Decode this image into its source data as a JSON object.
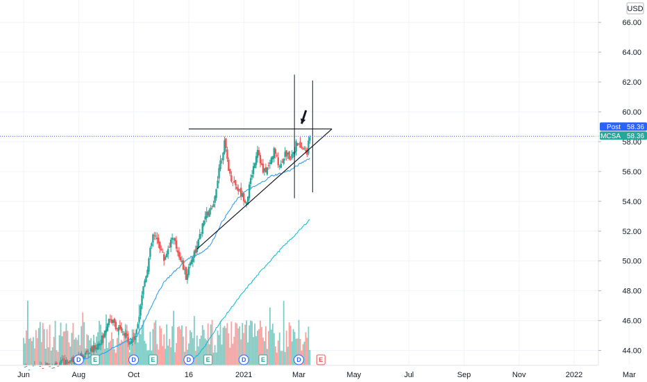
{
  "chart_data": {
    "type": "candlestick",
    "currency": "USD",
    "x_axis_labels": [
      "Jun",
      "Aug",
      "Oct",
      "16",
      "2021",
      "Mar",
      "May",
      "Jul",
      "Sep",
      "Nov",
      "2022",
      "Mar"
    ],
    "y_axis_labels": [
      "66.00",
      "64.00",
      "62.00",
      "60.00",
      "58.00",
      "56.00",
      "54.00",
      "52.00",
      "50.00",
      "48.00",
      "46.00",
      "44.00"
    ],
    "ylim": [
      43.0,
      67.5
    ],
    "price_tags": [
      {
        "label": "Post",
        "value": "58.36",
        "color": "#2962ff"
      },
      {
        "label": "CMCSA",
        "value": "58.36",
        "color": "#26a69a"
      }
    ],
    "last_price": 58.36,
    "ma_fast_anchors": [
      [
        1.0,
        43.4
      ],
      [
        1.3,
        43.6
      ],
      [
        1.5,
        43.9
      ],
      [
        1.7,
        44.3
      ],
      [
        1.9,
        44.7
      ],
      [
        2.05,
        44.9
      ],
      [
        2.15,
        45.6
      ],
      [
        2.35,
        47.2
      ],
      [
        2.55,
        48.6
      ],
      [
        2.8,
        49.5
      ],
      [
        3.0,
        50.2
      ],
      [
        3.25,
        50.6
      ],
      [
        3.4,
        51.1
      ],
      [
        3.6,
        52.6
      ],
      [
        3.85,
        54.0
      ],
      [
        4.0,
        54.6
      ],
      [
        4.3,
        55.2
      ],
      [
        4.5,
        55.7
      ],
      [
        4.7,
        55.9
      ],
      [
        4.85,
        56.1
      ],
      [
        5.1,
        56.7
      ],
      [
        5.2,
        56.9
      ]
    ],
    "ma_slow_anchors": [
      [
        3.0,
        43.0
      ],
      [
        3.3,
        44.3
      ],
      [
        3.5,
        45.5
      ],
      [
        3.8,
        47.0
      ],
      [
        4.1,
        48.4
      ],
      [
        4.4,
        49.7
      ],
      [
        4.7,
        50.9
      ],
      [
        5.0,
        52.0
      ],
      [
        5.2,
        52.8
      ]
    ],
    "candle_anchors": [
      [
        0.0,
        42.7
      ],
      [
        0.5,
        42.9
      ],
      [
        1.0,
        43.5
      ],
      [
        1.25,
        44.0
      ],
      [
        1.45,
        44.9
      ],
      [
        1.55,
        46.2
      ],
      [
        1.75,
        45.3
      ],
      [
        1.95,
        44.6
      ],
      [
        2.05,
        45.2
      ],
      [
        2.15,
        47.8
      ],
      [
        2.25,
        49.6
      ],
      [
        2.35,
        51.7
      ],
      [
        2.45,
        51.3
      ],
      [
        2.55,
        50.1
      ],
      [
        2.7,
        51.6
      ],
      [
        2.85,
        50.2
      ],
      [
        2.95,
        48.9
      ],
      [
        3.05,
        50.2
      ],
      [
        3.15,
        50.9
      ],
      [
        3.3,
        53.0
      ],
      [
        3.45,
        53.6
      ],
      [
        3.55,
        56.3
      ],
      [
        3.65,
        57.9
      ],
      [
        3.75,
        55.7
      ],
      [
        3.85,
        55.1
      ],
      [
        3.95,
        54.5
      ],
      [
        4.05,
        54.0
      ],
      [
        4.15,
        55.9
      ],
      [
        4.25,
        57.6
      ],
      [
        4.35,
        55.9
      ],
      [
        4.45,
        56.3
      ],
      [
        4.55,
        57.4
      ],
      [
        4.65,
        56.4
      ],
      [
        4.75,
        57.2
      ],
      [
        4.85,
        57.0
      ],
      [
        4.95,
        57.8
      ],
      [
        5.05,
        57.6
      ],
      [
        5.15,
        57.3
      ],
      [
        5.2,
        58.36
      ]
    ],
    "annotations": [
      {
        "kind": "resistance-line",
        "from": [
          3.0,
          58.85
        ],
        "to": [
          5.6,
          58.85
        ]
      },
      {
        "kind": "support-line",
        "from": [
          3.15,
          50.8
        ],
        "to": [
          5.6,
          58.85
        ]
      },
      {
        "kind": "vertical-line",
        "x": 4.92,
        "y_range": [
          54.2,
          62.5
        ]
      },
      {
        "kind": "vertical-line",
        "x": 5.25,
        "y_range": [
          54.6,
          62.1
        ]
      },
      {
        "kind": "arrow",
        "from": [
          5.13,
          60.1
        ],
        "to": [
          5.05,
          59.2
        ]
      }
    ],
    "events": [
      {
        "type": "D",
        "x": 1.0
      },
      {
        "type": "E",
        "x": 1.3
      },
      {
        "type": "D",
        "x": 2.0
      },
      {
        "type": "E",
        "x": 2.35
      },
      {
        "type": "D",
        "x": 3.0
      },
      {
        "type": "E",
        "x": 3.35
      },
      {
        "type": "D",
        "x": 4.0
      },
      {
        "type": "E",
        "x": 4.35
      },
      {
        "type": "D",
        "x": 5.0
      },
      {
        "type": "E",
        "x": 5.4,
        "future": true
      }
    ]
  },
  "colors": {
    "up": "#26a69a",
    "down": "#ef5350",
    "up_volume": "#80cbc4",
    "down_volume": "#f8a09e",
    "ma_fast": "#2196f3",
    "ma_slow": "#00bcd4",
    "grid": "#f0f3fa",
    "drawing": "#131722",
    "price_line": "#2962ff"
  }
}
